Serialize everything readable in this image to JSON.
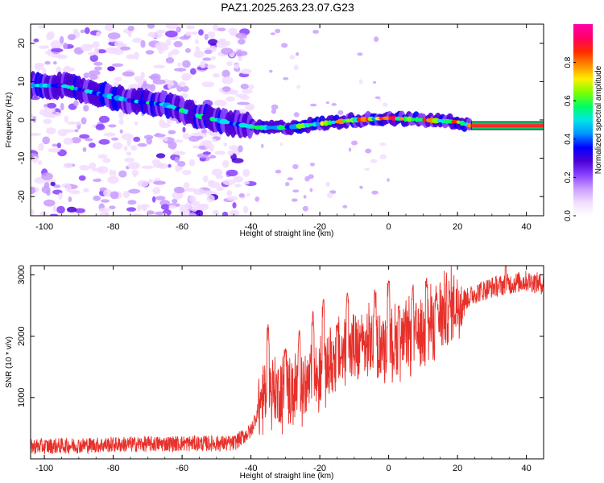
{
  "title": "PAZ1.2025.263.23.07.G23",
  "chart_data": [
    {
      "type": "heatmap",
      "name": "spectrogram",
      "xlabel": "Height of straight line (km)",
      "ylabel": "Frequency (Hz)",
      "xlim": [
        -104,
        45
      ],
      "ylim": [
        -25,
        25
      ],
      "xticks": [
        -100,
        -80,
        -60,
        -40,
        -20,
        0,
        20,
        40
      ],
      "yticks": [
        20,
        10,
        0,
        -10,
        -20
      ],
      "xtick_labels": [
        "-100",
        "-80",
        "-60",
        "-40",
        "-20",
        "0",
        "20",
        "40"
      ],
      "ytick_labels": [
        "20",
        "10",
        "0",
        "-10",
        "-20"
      ],
      "ridge": {
        "description": "dominant frequency line",
        "x": [
          -104,
          -95,
          -85,
          -75,
          -65,
          -55,
          -45,
          -38,
          -30,
          -20,
          -10,
          0,
          10,
          20,
          24,
          45
        ],
        "y": [
          9,
          9,
          7,
          5,
          4,
          1,
          -1,
          -2,
          -2,
          -1,
          0,
          0.5,
          0,
          -0.5,
          -1.5,
          -1.5
        ]
      },
      "colorbar": {
        "label": "Normalized spectral amplitude",
        "range": [
          0,
          1
        ],
        "ticks": [
          0.0,
          0.2,
          0.4,
          0.6,
          0.8
        ],
        "tick_labels": [
          "0.0",
          "0.2",
          "0.4",
          "0.6",
          "0.8"
        ],
        "colormap": [
          "#ffffff",
          "#f2dcff",
          "#c89bff",
          "#8a40ff",
          "#4b00d6",
          "#0000ff",
          "#0096ff",
          "#00e6e6",
          "#00ff60",
          "#7cff00",
          "#ffee00",
          "#ff8a00",
          "#ff2a00",
          "#ff0066",
          "#ff00aa"
        ]
      }
    },
    {
      "type": "line",
      "name": "snr",
      "xlabel": "Height of straight line (km)",
      "ylabel": "SNR (10 * v/v)",
      "xlim": [
        -104,
        45
      ],
      "ylim": [
        0,
        3150
      ],
      "xticks": [
        -100,
        -80,
        -60,
        -40,
        -20,
        0,
        20,
        40
      ],
      "yticks": [
        1000,
        2000,
        3000
      ],
      "xtick_labels": [
        "-100",
        "-80",
        "-60",
        "-40",
        "-20",
        "0",
        "20",
        "40"
      ],
      "ytick_labels": [
        "1000",
        "2000",
        "3000"
      ],
      "color": "#e8302a",
      "envelope": {
        "x": [
          -104,
          -80,
          -60,
          -45,
          -40,
          -37,
          -35,
          -30,
          -25,
          -20,
          -15,
          -10,
          -5,
          0,
          5,
          10,
          15,
          20,
          25,
          30,
          35,
          40,
          45
        ],
        "y": [
          150,
          180,
          200,
          200,
          400,
          900,
          1100,
          1000,
          1100,
          1300,
          1600,
          1700,
          1800,
          1800,
          1900,
          2000,
          2300,
          2500,
          2700,
          2800,
          2850,
          2900,
          2850
        ]
      },
      "peaks": {
        "x": [
          -35,
          -30,
          -26,
          -22,
          -19,
          -15,
          -12,
          -8,
          -4,
          0,
          3,
          7,
          11,
          14,
          34
        ],
        "y": [
          2200,
          1800,
          2100,
          2400,
          2600,
          2200,
          2700,
          2000,
          2750,
          2900,
          2500,
          2850,
          2950,
          2700,
          3150
        ]
      }
    }
  ]
}
